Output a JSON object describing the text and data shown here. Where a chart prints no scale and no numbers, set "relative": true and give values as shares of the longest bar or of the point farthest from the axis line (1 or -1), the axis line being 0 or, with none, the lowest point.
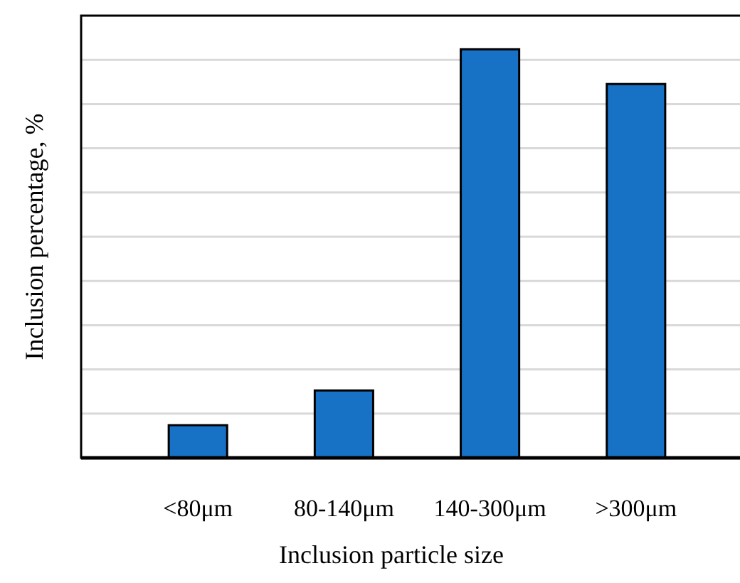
{
  "chart_data": {
    "type": "bar",
    "relative": true,
    "xlabel": "Inclusion particle size",
    "ylabel": "Inclusion percentage, %",
    "categories": [
      "<80μm",
      "80-140μm",
      "140-300μm",
      ">300μm"
    ],
    "values": [
      0.08,
      0.165,
      1,
      0.915
    ],
    "color": "#1772c6",
    "grid": "y"
  }
}
